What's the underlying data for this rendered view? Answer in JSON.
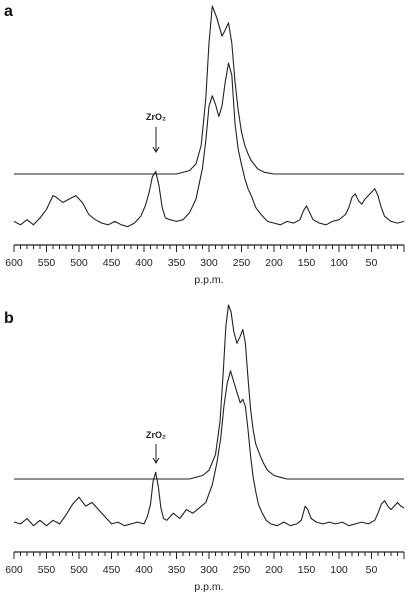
{
  "chart_data": [
    {
      "type": "line",
      "panel_label": "a",
      "xlabel": "p.p.m.",
      "ylabel": "",
      "x_reversed": true,
      "xlim": [
        600,
        0
      ],
      "x_ticks": [
        600,
        550,
        500,
        450,
        400,
        350,
        300,
        250,
        200,
        150,
        100,
        50
      ],
      "annotation": {
        "text": "ZrO₂",
        "x": 380,
        "arrow": "down"
      },
      "series": [
        {
          "role": "simulated (upper trace)",
          "x": [
            600,
            400,
            350,
            330,
            320,
            312,
            305,
            300,
            295,
            288,
            280,
            276,
            270,
            265,
            260,
            255,
            250,
            245,
            240,
            235,
            225,
            215,
            200,
            180,
            0
          ],
          "y": [
            0.0,
            0.0,
            0.0,
            0.02,
            0.06,
            0.17,
            0.45,
            0.78,
            1.0,
            0.93,
            0.82,
            0.85,
            0.9,
            0.78,
            0.55,
            0.38,
            0.25,
            0.17,
            0.12,
            0.08,
            0.03,
            0.01,
            0.0,
            0.0,
            0.0
          ]
        },
        {
          "role": "experimental (lower trace)",
          "x": [
            600,
            590,
            580,
            570,
            560,
            550,
            540,
            535,
            525,
            515,
            505,
            495,
            485,
            475,
            465,
            455,
            445,
            435,
            425,
            415,
            405,
            398,
            392,
            387,
            382,
            377,
            372,
            367,
            360,
            350,
            340,
            330,
            320,
            310,
            305,
            300,
            295,
            290,
            285,
            280,
            275,
            270,
            265,
            260,
            255,
            250,
            245,
            240,
            235,
            228,
            220,
            210,
            200,
            190,
            180,
            170,
            160,
            155,
            150,
            145,
            140,
            130,
            120,
            110,
            100,
            90,
            85,
            80,
            75,
            70,
            65,
            60,
            55,
            50,
            45,
            40,
            35,
            30,
            20,
            10,
            0
          ],
          "y": [
            0.05,
            0.03,
            0.06,
            0.03,
            0.07,
            0.12,
            0.2,
            0.19,
            0.16,
            0.18,
            0.2,
            0.16,
            0.09,
            0.06,
            0.04,
            0.03,
            0.05,
            0.03,
            0.02,
            0.04,
            0.08,
            0.14,
            0.22,
            0.31,
            0.34,
            0.26,
            0.13,
            0.07,
            0.06,
            0.05,
            0.06,
            0.1,
            0.18,
            0.36,
            0.52,
            0.72,
            0.78,
            0.73,
            0.66,
            0.72,
            0.86,
            0.97,
            0.9,
            0.62,
            0.47,
            0.38,
            0.3,
            0.24,
            0.2,
            0.13,
            0.09,
            0.05,
            0.04,
            0.03,
            0.05,
            0.04,
            0.06,
            0.11,
            0.14,
            0.1,
            0.06,
            0.04,
            0.03,
            0.05,
            0.06,
            0.09,
            0.13,
            0.19,
            0.21,
            0.17,
            0.15,
            0.18,
            0.2,
            0.22,
            0.24,
            0.2,
            0.13,
            0.08,
            0.05,
            0.04,
            0.05
          ]
        }
      ]
    },
    {
      "type": "line",
      "panel_label": "b",
      "xlabel": "p.p.m.",
      "ylabel": "",
      "x_reversed": true,
      "xlim": [
        600,
        0
      ],
      "x_ticks": [
        600,
        550,
        500,
        450,
        400,
        350,
        300,
        250,
        200,
        150,
        100,
        50
      ],
      "annotation": {
        "text": "ZrO₂",
        "x": 380,
        "arrow": "down"
      },
      "series": [
        {
          "role": "simulated (upper trace)",
          "x": [
            600,
            400,
            330,
            310,
            300,
            290,
            283,
            278,
            274,
            270,
            266,
            262,
            257,
            252,
            248,
            244,
            240,
            236,
            232,
            228,
            222,
            216,
            210,
            200,
            190,
            180,
            160,
            0
          ],
          "y": [
            0.0,
            0.0,
            0.0,
            0.02,
            0.05,
            0.14,
            0.33,
            0.62,
            0.88,
            1.0,
            0.96,
            0.85,
            0.78,
            0.82,
            0.86,
            0.78,
            0.58,
            0.4,
            0.28,
            0.2,
            0.14,
            0.09,
            0.05,
            0.02,
            0.01,
            0.0,
            0.0,
            0.0
          ]
        },
        {
          "role": "experimental (lower trace)",
          "x": [
            600,
            590,
            580,
            570,
            560,
            550,
            540,
            530,
            520,
            510,
            500,
            490,
            480,
            470,
            460,
            450,
            440,
            430,
            420,
            410,
            400,
            395,
            390,
            386,
            382,
            378,
            374,
            370,
            365,
            355,
            345,
            335,
            325,
            315,
            305,
            295,
            288,
            282,
            277,
            272,
            267,
            262,
            257,
            252,
            248,
            244,
            240,
            236,
            232,
            228,
            224,
            218,
            212,
            205,
            195,
            185,
            175,
            165,
            158,
            152,
            148,
            143,
            135,
            125,
            115,
            105,
            95,
            85,
            75,
            65,
            55,
            45,
            40,
            35,
            30,
            25,
            20,
            15,
            10,
            5,
            0
          ],
          "y": [
            0.05,
            0.04,
            0.07,
            0.03,
            0.06,
            0.03,
            0.06,
            0.04,
            0.09,
            0.15,
            0.19,
            0.14,
            0.16,
            0.12,
            0.08,
            0.04,
            0.05,
            0.03,
            0.04,
            0.05,
            0.04,
            0.08,
            0.15,
            0.28,
            0.33,
            0.25,
            0.13,
            0.07,
            0.06,
            0.1,
            0.07,
            0.12,
            0.1,
            0.13,
            0.16,
            0.26,
            0.38,
            0.52,
            0.7,
            0.83,
            0.9,
            0.84,
            0.78,
            0.72,
            0.74,
            0.7,
            0.57,
            0.42,
            0.3,
            0.22,
            0.15,
            0.1,
            0.06,
            0.04,
            0.03,
            0.05,
            0.03,
            0.04,
            0.06,
            0.14,
            0.12,
            0.07,
            0.05,
            0.04,
            0.05,
            0.04,
            0.05,
            0.03,
            0.04,
            0.05,
            0.04,
            0.06,
            0.1,
            0.15,
            0.17,
            0.14,
            0.12,
            0.14,
            0.16,
            0.14,
            0.13
          ]
        }
      ]
    }
  ]
}
